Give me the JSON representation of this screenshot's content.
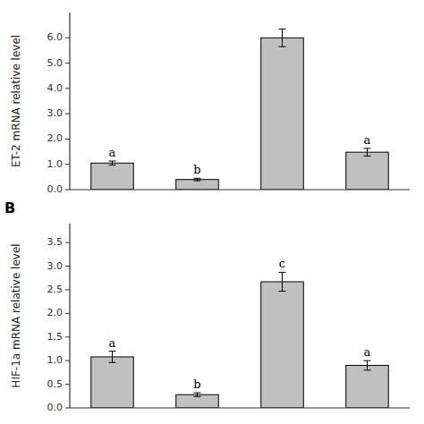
{
  "chart_data": [
    {
      "type": "bar",
      "categories": [
        null,
        null,
        null,
        null
      ],
      "values": [
        1.05,
        0.4,
        6.0,
        1.48
      ],
      "errors": [
        0.08,
        0.05,
        0.35,
        0.15
      ],
      "annotations": [
        "a",
        "b",
        null,
        "a"
      ],
      "y_label": "ET-2 mRNA relative level",
      "ylim": [
        0,
        7.0
      ],
      "yticks": [
        {
          "value": 0.0,
          "label": "0.0"
        },
        {
          "value": 1.0,
          "label": "1.0"
        },
        {
          "value": 2.0,
          "label": "2.0"
        },
        {
          "value": 3.0,
          "label": "3.0"
        },
        {
          "value": 4.0,
          "label": "4.0"
        },
        {
          "value": 5.0,
          "label": "5.0"
        },
        {
          "value": 6.0,
          "label": "6.0"
        }
      ],
      "color": "#c0c0c0",
      "grid": false
    },
    {
      "type": "bar",
      "title": "B",
      "categories": [
        null,
        null,
        null,
        null
      ],
      "values": [
        1.08,
        0.28,
        2.67,
        0.9
      ],
      "errors": [
        0.12,
        0.04,
        0.2,
        0.1
      ],
      "annotations": [
        "a",
        "b",
        "c",
        "a"
      ],
      "y_label": "HIF-1a mRNA relative level",
      "ylim": [
        0,
        3.9
      ],
      "yticks": [
        {
          "value": 0.0,
          "label": "0.0"
        },
        0.5,
        {
          "value": 1.0,
          "label": "1.0"
        },
        1.5,
        {
          "value": 2.0,
          "label": "2.0"
        },
        2.5,
        {
          "value": 3.0,
          "label": "3.0"
        },
        3.5
      ],
      "color": "#c0c0c0",
      "grid": false
    }
  ]
}
